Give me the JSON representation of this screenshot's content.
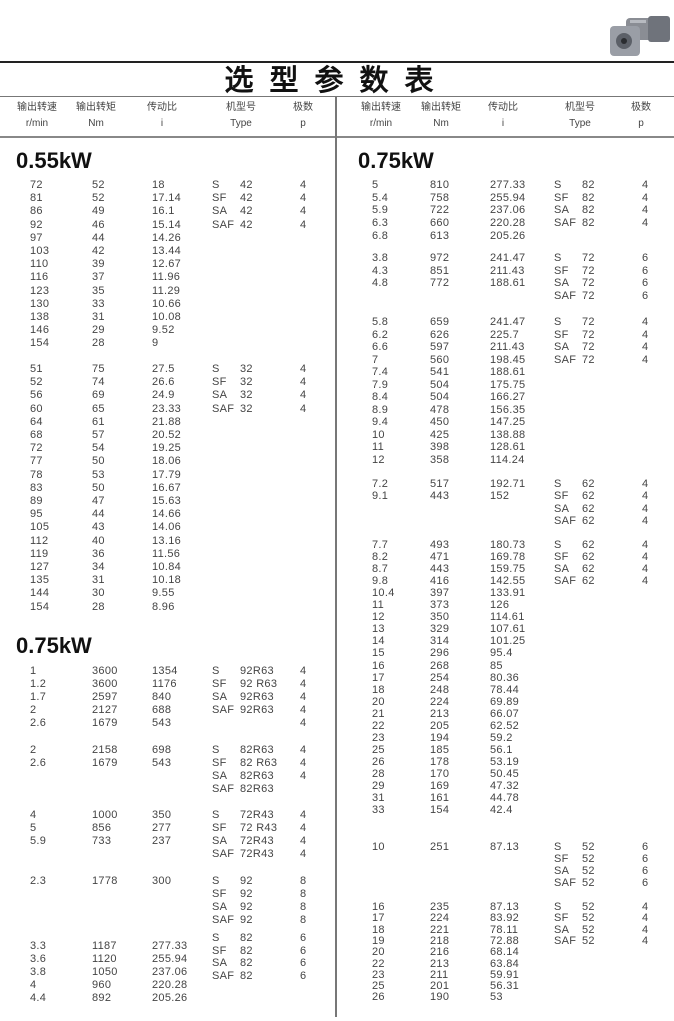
{
  "title": "选型参数表",
  "image": {
    "label": "gear-motor-photo"
  },
  "header": [
    {
      "cn": "输出转速",
      "unit": "r/min"
    },
    {
      "cn": "输出转矩",
      "unit": "Nm"
    },
    {
      "cn": "传动比",
      "unit": "i"
    },
    {
      "cn": "机型号",
      "unit": "Type"
    },
    {
      "cn": "极数",
      "unit": "p"
    }
  ],
  "left": {
    "sections": [
      {
        "power": "0.55kW",
        "groups": [
          {
            "rows": [
              [
                "72",
                "52",
                "18"
              ],
              [
                "81",
                "52",
                "17.14"
              ],
              [
                "86",
                "49",
                "16.1"
              ],
              [
                "92",
                "46",
                "15.14"
              ],
              [
                "97",
                "44",
                "14.26"
              ],
              [
                "103",
                "42",
                "13.44"
              ],
              [
                "110",
                "39",
                "12.67"
              ],
              [
                "116",
                "37",
                "11.96"
              ],
              [
                "123",
                "35",
                "11.29"
              ],
              [
                "130",
                "33",
                "10.66"
              ],
              [
                "138",
                "31",
                "10.08"
              ],
              [
                "146",
                "29",
                "9.52"
              ],
              [
                "154",
                "28",
                "9"
              ]
            ],
            "types": [
              [
                "S",
                "42",
                "4"
              ],
              [
                "SF",
                "42",
                "4"
              ],
              [
                "SA",
                "42",
                "4"
              ],
              [
                "SAF",
                "42",
                "4"
              ]
            ]
          },
          {
            "rows": [
              [
                "51",
                "75",
                "27.5"
              ],
              [
                "52",
                "74",
                "26.6"
              ],
              [
                "56",
                "69",
                "24.9"
              ],
              [
                "60",
                "65",
                "23.33"
              ],
              [
                "64",
                "61",
                "21.88"
              ],
              [
                "68",
                "57",
                "20.52"
              ],
              [
                "72",
                "54",
                "19.25"
              ],
              [
                "77",
                "50",
                "18.06"
              ],
              [
                "78",
                "53",
                "17.79"
              ],
              [
                "83",
                "50",
                "16.67"
              ],
              [
                "89",
                "47",
                "15.63"
              ],
              [
                "95",
                "44",
                "14.66"
              ],
              [
                "105",
                "43",
                "14.06"
              ],
              [
                "112",
                "40",
                "13.16"
              ],
              [
                "119",
                "36",
                "11.56"
              ],
              [
                "127",
                "34",
                "10.84"
              ],
              [
                "135",
                "31",
                "10.18"
              ],
              [
                "144",
                "30",
                "9.55"
              ],
              [
                "154",
                "28",
                "8.96"
              ]
            ],
            "types": [
              [
                "S",
                "32",
                "4"
              ],
              [
                "SF",
                "32",
                "4"
              ],
              [
                "SA",
                "32",
                "4"
              ],
              [
                "SAF",
                "32",
                "4"
              ]
            ]
          }
        ]
      },
      {
        "power": "0.75kW",
        "groups": [
          {
            "rows": [
              [
                "1",
                "3600",
                "1354"
              ],
              [
                "1.2",
                "3600",
                "1176"
              ],
              [
                "1.7",
                "2597",
                "840"
              ],
              [
                "2",
                "2127",
                "688"
              ],
              [
                "2.6",
                "1679",
                "543"
              ]
            ],
            "types": [
              [
                "S",
                "92R63",
                "4"
              ],
              [
                "SF",
                "92 R63",
                "4"
              ],
              [
                "SA",
                "92R63",
                "4"
              ],
              [
                "SAF",
                "92R63",
                "4"
              ],
              [
                "",
                "",
                "4"
              ]
            ]
          },
          {
            "rows": [
              [
                "2",
                "2158",
                "698"
              ],
              [
                "2.6",
                "1679",
                "543"
              ]
            ],
            "types": [
              [
                "S",
                "82R63",
                "4"
              ],
              [
                "SF",
                "82 R63",
                "4"
              ],
              [
                "SA",
                "82R63",
                "4"
              ],
              [
                "SAF",
                "82R63",
                ""
              ]
            ]
          },
          {
            "rows": [
              [
                "4",
                "1000",
                "350"
              ],
              [
                "5",
                "856",
                "277"
              ],
              [
                "5.9",
                "733",
                "237"
              ]
            ],
            "types": [
              [
                "S",
                "72R43",
                "4"
              ],
              [
                "SF",
                "72 R43",
                "4"
              ],
              [
                "SA",
                "72R43",
                "4"
              ],
              [
                "SAF",
                "72R43",
                "4"
              ]
            ]
          },
          {
            "rows": [
              [
                "2.3",
                "1778",
                "300"
              ]
            ],
            "types": [
              [
                "S",
                "92",
                "8"
              ],
              [
                "SF",
                "92",
                "8"
              ],
              [
                "SA",
                "92",
                "8"
              ],
              [
                "SAF",
                "92",
                "8"
              ]
            ]
          },
          {
            "rows": [
              [
                "3.3",
                "1187",
                "277.33"
              ],
              [
                "3.6",
                "1120",
                "255.94"
              ],
              [
                "3.8",
                "1050",
                "237.06"
              ],
              [
                "4",
                "960",
                "220.28"
              ],
              [
                "4.4",
                "892",
                "205.26"
              ]
            ],
            "types": [
              [
                "S",
                "82",
                "6"
              ],
              [
                "SF",
                "82",
                "6"
              ],
              [
                "SA",
                "82",
                "6"
              ],
              [
                "SAF",
                "82",
                "6"
              ]
            ]
          }
        ]
      }
    ]
  },
  "right": {
    "sections": [
      {
        "power": "0.75kW",
        "groups": [
          {
            "rows": [
              [
                "5",
                "810",
                "277.33"
              ],
              [
                "5.4",
                "758",
                "255.94"
              ],
              [
                "5.9",
                "722",
                "237.06"
              ],
              [
                "6.3",
                "660",
                "220.28"
              ],
              [
                "6.8",
                "613",
                "205.26"
              ]
            ],
            "types": [
              [
                "S",
                "82",
                "4"
              ],
              [
                "SF",
                "82",
                "4"
              ],
              [
                "SA",
                "82",
                "4"
              ],
              [
                "SAF",
                "82",
                "4"
              ]
            ]
          },
          {
            "rows": [
              [
                "3.8",
                "972",
                "241.47"
              ],
              [
                "4.3",
                "851",
                "211.43"
              ],
              [
                "4.8",
                "772",
                "188.61"
              ]
            ],
            "types": [
              [
                "S",
                "72",
                "6"
              ],
              [
                "SF",
                "72",
                "6"
              ],
              [
                "SA",
                "72",
                "6"
              ],
              [
                "SAF",
                "72",
                "6"
              ]
            ]
          },
          {
            "rows": [
              [
                "5.8",
                "659",
                "241.47"
              ],
              [
                "6.2",
                "626",
                "225.7"
              ],
              [
                "6.6",
                "597",
                "211.43"
              ],
              [
                "7",
                "560",
                "198.45"
              ],
              [
                "7.4",
                "541",
                "188.61"
              ],
              [
                "7.9",
                "504",
                "175.75"
              ],
              [
                "8.4",
                "504",
                "166.27"
              ],
              [
                "8.9",
                "478",
                "156.35"
              ],
              [
                "9.4",
                "450",
                "147.25"
              ],
              [
                "10",
                "425",
                "138.88"
              ],
              [
                "11",
                "398",
                "128.61"
              ],
              [
                "12",
                "358",
                "114.24"
              ]
            ],
            "types": [
              [
                "S",
                "72",
                "4"
              ],
              [
                "SF",
                "72",
                "4"
              ],
              [
                "SA",
                "72",
                "4"
              ],
              [
                "SAF",
                "72",
                "4"
              ]
            ]
          },
          {
            "rows": [
              [
                "7.2",
                "517",
                "192.71"
              ],
              [
                "9.1",
                "443",
                "152"
              ]
            ],
            "types": [
              [
                "S",
                "62",
                "4"
              ],
              [
                "SF",
                "62",
                "4"
              ],
              [
                "SA",
                "62",
                "4"
              ],
              [
                "SAF",
                "62",
                "4"
              ]
            ]
          },
          {
            "rows": [
              [
                "7.7",
                "493",
                "180.73"
              ],
              [
                "8.2",
                "471",
                "169.78"
              ],
              [
                "8.7",
                "443",
                "159.75"
              ],
              [
                "9.8",
                "416",
                "142.55"
              ],
              [
                "10.4",
                "397",
                "133.91"
              ],
              [
                "11",
                "373",
                "126"
              ],
              [
                "12",
                "350",
                "114.61"
              ],
              [
                "13",
                "329",
                "107.61"
              ],
              [
                "14",
                "314",
                "101.25"
              ],
              [
                "15",
                "296",
                "95.4"
              ],
              [
                "16",
                "268",
                "85"
              ],
              [
                "17",
                "254",
                "80.36"
              ],
              [
                "18",
                "248",
                "78.44"
              ],
              [
                "20",
                "224",
                "69.89"
              ],
              [
                "21",
                "213",
                "66.07"
              ],
              [
                "22",
                "205",
                "62.52"
              ],
              [
                "23",
                "194",
                "59.2"
              ],
              [
                "25",
                "185",
                "56.1"
              ],
              [
                "26",
                "178",
                "53.19"
              ],
              [
                "28",
                "170",
                "50.45"
              ],
              [
                "29",
                "169",
                "47.32"
              ],
              [
                "31",
                "161",
                "44.78"
              ],
              [
                "33",
                "154",
                "42.4"
              ]
            ],
            "types": [
              [
                "S",
                "62",
                "4"
              ],
              [
                "SF",
                "62",
                "4"
              ],
              [
                "SA",
                "62",
                "4"
              ],
              [
                "SAF",
                "62",
                "4"
              ]
            ]
          },
          {
            "rows": [
              [
                "10",
                "251",
                "87.13"
              ]
            ],
            "types": [
              [
                "S",
                "52",
                "6"
              ],
              [
                "SF",
                "52",
                "6"
              ],
              [
                "SA",
                "52",
                "6"
              ],
              [
                "SAF",
                "52",
                "6"
              ]
            ]
          },
          {
            "rows": [
              [
                "16",
                "235",
                "87.13"
              ],
              [
                "17",
                "224",
                "83.92"
              ],
              [
                "18",
                "221",
                "78.11"
              ],
              [
                "19",
                "218",
                "72.88"
              ],
              [
                "20",
                "216",
                "68.14"
              ],
              [
                "22",
                "213",
                "63.84"
              ],
              [
                "23",
                "211",
                "59.91"
              ],
              [
                "25",
                "201",
                "56.31"
              ],
              [
                "26",
                "190",
                "53"
              ]
            ],
            "types": [
              [
                "S",
                "52",
                "4"
              ],
              [
                "SF",
                "52",
                "4"
              ],
              [
                "SA",
                "52",
                "4"
              ],
              [
                "SAF",
                "52",
                "4"
              ]
            ]
          }
        ]
      }
    ]
  }
}
